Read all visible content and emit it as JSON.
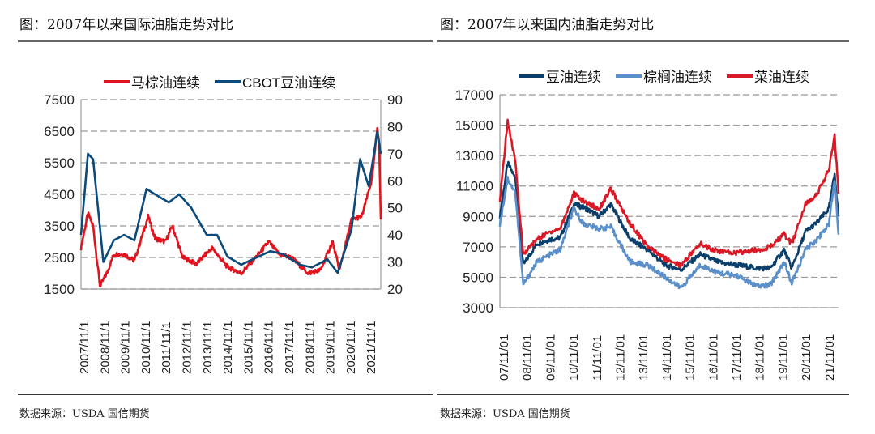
{
  "left": {
    "title": "图：2007年以来国际油脂走势对比",
    "source": "数据来源：USDA 国信期货"
  },
  "right": {
    "title": "图：2007年以来国内油脂走势对比",
    "source": "数据来源：USDA  国信期货"
  },
  "chart_data": [
    {
      "type": "line",
      "title": "",
      "xlabel": "",
      "ylabel": "",
      "ylim": [
        1500,
        7500
      ],
      "yticks": [
        7500,
        6500,
        5500,
        4500,
        3500,
        2500,
        1500
      ],
      "y2lim": [
        20,
        90
      ],
      "y2ticks": [
        90,
        80,
        70,
        60,
        50,
        40,
        30,
        20
      ],
      "xticks": [
        "2007/11/1",
        "2008/11/1",
        "2009/11/1",
        "2010/11/1",
        "2011/11/1",
        "2012/11/1",
        "2013/11/1",
        "2014/11/1",
        "2015/11/1",
        "2016/11/1",
        "2017/11/1",
        "2018/11/1",
        "2019/11/1",
        "2020/11/1",
        "2021/11/1"
      ],
      "grid": true,
      "legend": "top",
      "series": [
        {
          "name": "马棕油连续",
          "color": "#e0141e",
          "axis": "left",
          "points": [
            [
              "2007-11",
              2800
            ],
            [
              "2008-03",
              3900
            ],
            [
              "2008-06",
              3500
            ],
            [
              "2008-10",
              1600
            ],
            [
              "2009-02",
              2000
            ],
            [
              "2009-06",
              2600
            ],
            [
              "2009-12",
              2600
            ],
            [
              "2010-06",
              2400
            ],
            [
              "2011-02",
              3800
            ],
            [
              "2011-06",
              3100
            ],
            [
              "2011-12",
              3000
            ],
            [
              "2012-04",
              3500
            ],
            [
              "2012-10",
              2500
            ],
            [
              "2013-06",
              2300
            ],
            [
              "2014-03",
              2800
            ],
            [
              "2014-12",
              2200
            ],
            [
              "2015-08",
              2000
            ],
            [
              "2016-06",
              2600
            ],
            [
              "2016-12",
              3000
            ],
            [
              "2017-06",
              2600
            ],
            [
              "2018-01",
              2500
            ],
            [
              "2018-11",
              2000
            ],
            [
              "2019-06",
              2100
            ],
            [
              "2020-01",
              3000
            ],
            [
              "2020-05",
              2100
            ],
            [
              "2020-12",
              3700
            ],
            [
              "2021-06",
              3800
            ],
            [
              "2021-12",
              5000
            ],
            [
              "2022-03",
              6600
            ],
            [
              "2022-04",
              6200
            ],
            [
              "2022-05",
              3700
            ]
          ]
        },
        {
          "name": "CBOT豆油连续",
          "color": "#0b4a7a",
          "axis": "right",
          "points": [
            [
              "2007-11",
              40
            ],
            [
              "2008-03",
              70
            ],
            [
              "2008-06",
              68
            ],
            [
              "2008-12",
              30
            ],
            [
              "2009-06",
              38
            ],
            [
              "2009-12",
              40
            ],
            [
              "2010-06",
              38
            ],
            [
              "2011-01",
              57
            ],
            [
              "2011-06",
              55
            ],
            [
              "2012-02",
              52
            ],
            [
              "2012-08",
              55
            ],
            [
              "2013-03",
              50
            ],
            [
              "2013-12",
              40
            ],
            [
              "2014-06",
              40
            ],
            [
              "2014-12",
              32
            ],
            [
              "2015-08",
              29
            ],
            [
              "2016-06",
              32
            ],
            [
              "2017-01",
              34
            ],
            [
              "2017-08",
              33
            ],
            [
              "2018-06",
              29
            ],
            [
              "2019-01",
              28
            ],
            [
              "2019-10",
              31
            ],
            [
              "2020-04",
              26
            ],
            [
              "2020-12",
              42
            ],
            [
              "2021-05",
              68
            ],
            [
              "2021-10",
              58
            ],
            [
              "2022-03",
              78
            ],
            [
              "2022-05",
              70
            ]
          ]
        }
      ]
    },
    {
      "type": "line",
      "title": "",
      "xlabel": "",
      "ylabel": "",
      "ylim": [
        3000,
        17000
      ],
      "yticks": [
        17000,
        15000,
        13000,
        11000,
        9000,
        7000,
        5000,
        3000
      ],
      "xticks": [
        "07/11/01",
        "08/11/01",
        "09/11/01",
        "10/11/01",
        "11/11/01",
        "12/11/01",
        "13/11/01",
        "14/11/01",
        "15/11/01",
        "16/11/01",
        "17/11/01",
        "18/11/01",
        "19/11/01",
        "20/11/01",
        "21/11/01"
      ],
      "grid": true,
      "legend": "top",
      "series": [
        {
          "name": "豆油连续",
          "color": "#0b3f6b",
          "points": [
            [
              "2007-11",
              9000
            ],
            [
              "2008-03",
              12500
            ],
            [
              "2008-07",
              11500
            ],
            [
              "2008-11",
              5800
            ],
            [
              "2009-06",
              7200
            ],
            [
              "2010-01",
              7500
            ],
            [
              "2010-06",
              7600
            ],
            [
              "2011-01",
              9800
            ],
            [
              "2011-06",
              9600
            ],
            [
              "2012-02",
              9000
            ],
            [
              "2012-08",
              9800
            ],
            [
              "2013-06",
              7500
            ],
            [
              "2014-03",
              6800
            ],
            [
              "2014-12",
              5800
            ],
            [
              "2015-08",
              5500
            ],
            [
              "2016-06",
              6500
            ],
            [
              "2017-03",
              6000
            ],
            [
              "2018-01",
              5800
            ],
            [
              "2018-11",
              5600
            ],
            [
              "2019-06",
              5600
            ],
            [
              "2020-01",
              6800
            ],
            [
              "2020-05",
              5600
            ],
            [
              "2020-12",
              8000
            ],
            [
              "2021-06",
              8600
            ],
            [
              "2021-12",
              9500
            ],
            [
              "2022-03",
              11800
            ],
            [
              "2022-05",
              9000
            ]
          ]
        },
        {
          "name": "棕榈油连续",
          "color": "#5b8fc9",
          "points": [
            [
              "2007-11",
              8500
            ],
            [
              "2008-03",
              11500
            ],
            [
              "2008-07",
              10500
            ],
            [
              "2008-11",
              4500
            ],
            [
              "2009-06",
              6000
            ],
            [
              "2010-01",
              6500
            ],
            [
              "2010-06",
              6800
            ],
            [
              "2011-01",
              9500
            ],
            [
              "2011-06",
              8500
            ],
            [
              "2012-02",
              8200
            ],
            [
              "2012-08",
              8300
            ],
            [
              "2013-06",
              6000
            ],
            [
              "2014-03",
              5800
            ],
            [
              "2014-12",
              5000
            ],
            [
              "2015-08",
              4300
            ],
            [
              "2016-06",
              5800
            ],
            [
              "2017-03",
              5300
            ],
            [
              "2018-01",
              5100
            ],
            [
              "2018-11",
              4400
            ],
            [
              "2019-06",
              4500
            ],
            [
              "2020-01",
              6000
            ],
            [
              "2020-05",
              4600
            ],
            [
              "2020-12",
              6800
            ],
            [
              "2021-06",
              7500
            ],
            [
              "2021-12",
              8500
            ],
            [
              "2022-03",
              11500
            ],
            [
              "2022-05",
              7800
            ]
          ]
        },
        {
          "name": "菜油连续",
          "color": "#d91a26",
          "points": [
            [
              "2007-11",
              10000
            ],
            [
              "2008-03",
              15300
            ],
            [
              "2008-07",
              12500
            ],
            [
              "2008-11",
              6500
            ],
            [
              "2009-06",
              7500
            ],
            [
              "2010-01",
              8000
            ],
            [
              "2010-06",
              8200
            ],
            [
              "2011-01",
              10500
            ],
            [
              "2011-06",
              10000
            ],
            [
              "2012-02",
              9500
            ],
            [
              "2012-08",
              10800
            ],
            [
              "2013-06",
              8500
            ],
            [
              "2014-03",
              7000
            ],
            [
              "2014-12",
              6200
            ],
            [
              "2015-08",
              5800
            ],
            [
              "2016-06",
              7200
            ],
            [
              "2017-03",
              6700
            ],
            [
              "2018-01",
              6600
            ],
            [
              "2018-11",
              6800
            ],
            [
              "2019-06",
              7000
            ],
            [
              "2020-01",
              7800
            ],
            [
              "2020-05",
              7200
            ],
            [
              "2020-12",
              9800
            ],
            [
              "2021-06",
              10500
            ],
            [
              "2021-12",
              12000
            ],
            [
              "2022-03",
              14300
            ],
            [
              "2022-05",
              10500
            ]
          ]
        }
      ]
    }
  ]
}
